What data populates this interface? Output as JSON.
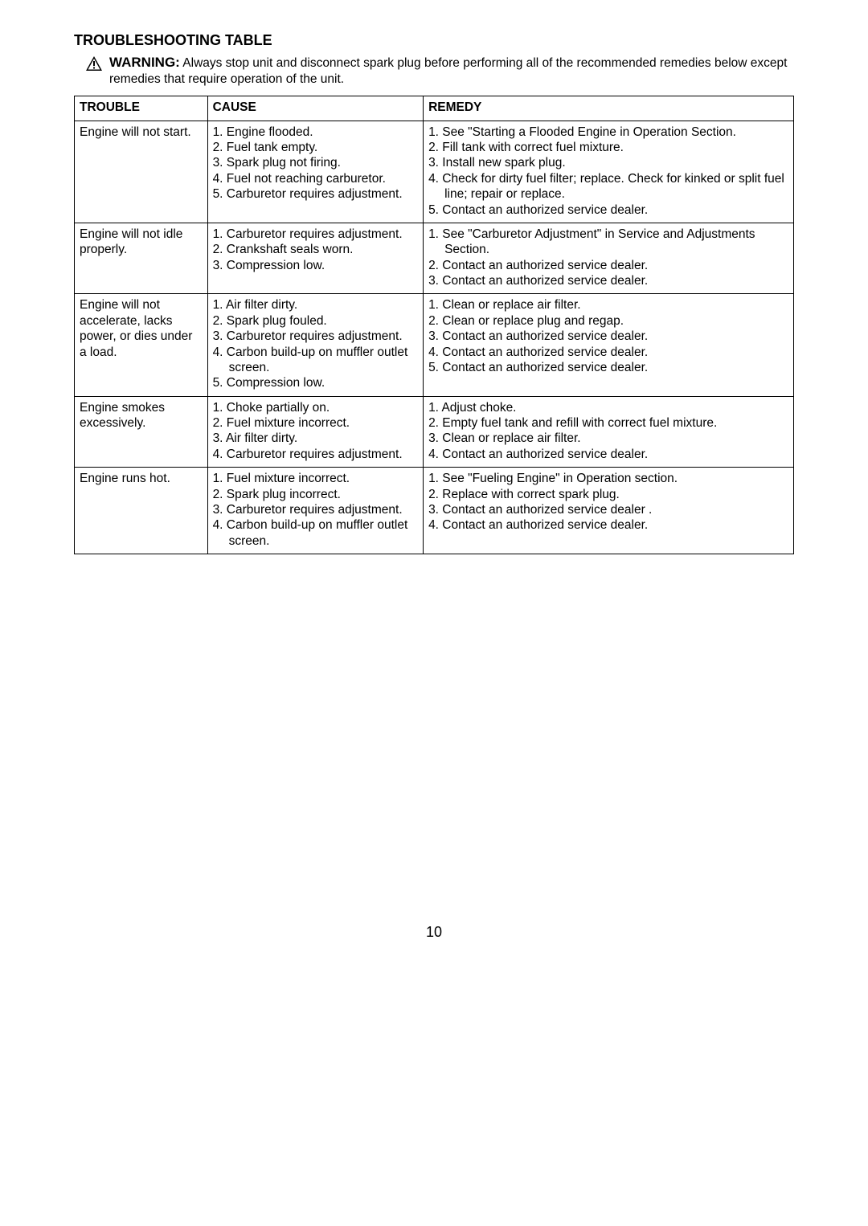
{
  "heading": "TROUBLESHOOTING TABLE",
  "warning": {
    "label": "WARNING:",
    "text": "Always stop unit and disconnect spark plug before performing all of the recommended remedies below except remedies that require operation of the unit."
  },
  "table": {
    "headers": {
      "trouble": "TROUBLE",
      "cause": "CAUSE",
      "remedy": "REMEDY"
    },
    "rows": [
      {
        "trouble": "Engine will not start.",
        "causes": [
          "1. Engine flooded.",
          "2. Fuel tank empty.",
          "3. Spark plug not firing.",
          "4. Fuel not reaching carburetor.",
          "5. Carburetor requires adjustment."
        ],
        "remedies": [
          "1. See \"Starting a Flooded Engine in Operation Section.",
          "2. Fill tank with correct fuel mixture.",
          "3. Install new spark plug.",
          "4. Check for dirty fuel filter; replace. Check for kinked or split fuel line; repair or replace.",
          "5. Contact an authorized service dealer."
        ]
      },
      {
        "trouble": "Engine will not idle properly.",
        "causes": [
          "1. Carburetor requires adjustment.",
          "2. Crankshaft seals worn.",
          "3. Compression low."
        ],
        "remedies": [
          "1. See \"Carburetor Adjustment\" in Service and Adjustments Section.",
          "2. Contact an authorized service dealer.",
          "3. Contact an authorized service dealer."
        ]
      },
      {
        "trouble": "Engine will not accelerate, lacks power, or dies under a load.",
        "causes": [
          "1. Air filter dirty.",
          "2. Spark plug fouled.",
          "3. Carburetor requires adjustment.",
          "4. Carbon build-up on muffler outlet screen.",
          "5. Compression low."
        ],
        "remedies": [
          "1. Clean or replace air filter.",
          "2. Clean or replace plug and regap.",
          "3. Contact an authorized service dealer.",
          "4. Contact an authorized service dealer.",
          "5. Contact an authorized service dealer."
        ]
      },
      {
        "trouble": "Engine smokes excessively.",
        "causes": [
          "1. Choke partially on.",
          "2. Fuel mixture incorrect.",
          "3. Air filter dirty.",
          "4. Carburetor requires adjustment."
        ],
        "remedies": [
          "1. Adjust choke.",
          "2. Empty fuel tank and refill with correct fuel mixture.",
          "3. Clean or replace air filter.",
          "4. Contact an authorized service dealer."
        ]
      },
      {
        "trouble": "Engine runs hot.",
        "causes": [
          "1. Fuel mixture incorrect.",
          "2. Spark plug incorrect.",
          "3. Carburetor requires adjustment.",
          "4. Carbon build-up on muffler outlet screen."
        ],
        "remedies": [
          "1. See \"Fueling Engine\" in Operation section.",
          "2. Replace with correct spark plug.",
          "3. Contact an authorized service dealer .",
          "4. Contact an authorized service dealer."
        ]
      }
    ]
  },
  "pageNumber": "10",
  "colors": {
    "text": "#000000",
    "background": "#ffffff",
    "border": "#000000"
  }
}
